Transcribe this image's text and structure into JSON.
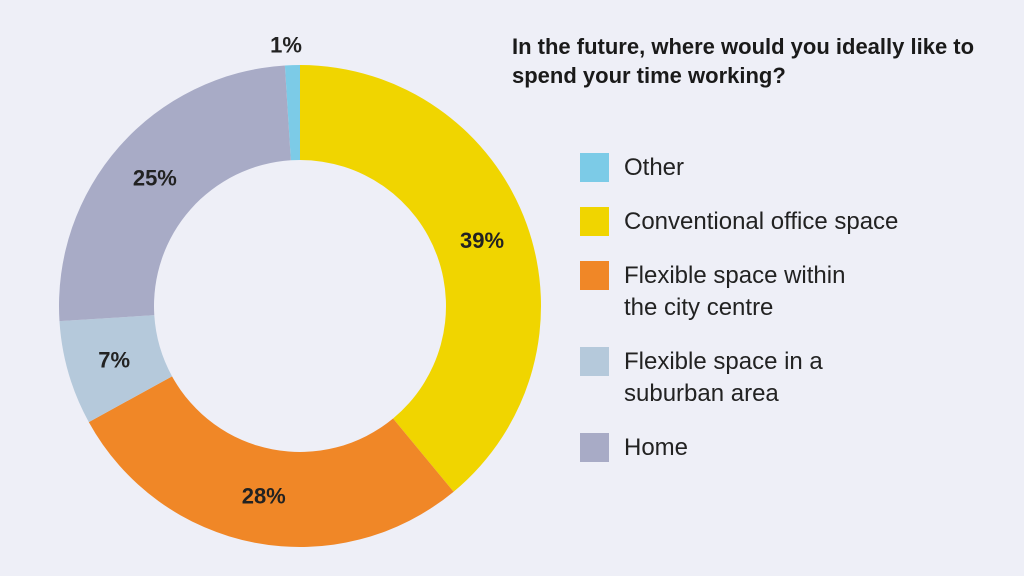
{
  "chart_data": {
    "type": "pie",
    "title": "In the future, where would you ideally like to spend your time working?",
    "series": [
      {
        "categories": [
          "Other",
          "Conventional office space",
          "Flexible space within the city centre",
          "Flexible space in a suburban area",
          "Home"
        ],
        "values": [
          1,
          39,
          28,
          7,
          25
        ],
        "value_labels": [
          "1%",
          "39%",
          "28%",
          "7%",
          "25%"
        ],
        "colors": [
          "#7ccbe7",
          "#f0d500",
          "#f08727",
          "#b5c9db",
          "#a8abc6"
        ]
      }
    ],
    "legend": {
      "position": "right",
      "entries": [
        {
          "label": "Other",
          "color": "#7ccbe7"
        },
        {
          "label": "Conventional office space",
          "color": "#f0d500"
        },
        {
          "label": "Flexible space within\nthe city centre",
          "color": "#f08727"
        },
        {
          "label": "Flexible space in a\nsuburban area",
          "color": "#b5c9db"
        },
        {
          "label": "Home",
          "color": "#a8abc6"
        }
      ]
    }
  }
}
